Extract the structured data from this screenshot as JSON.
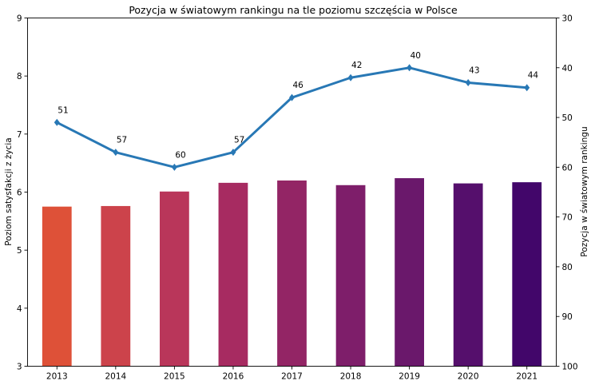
{
  "chart_data": {
    "type": "bar",
    "title": "Pozycja w światowym rankingu na tle poziomu szczęścia w Polsce",
    "categories": [
      "2013",
      "2014",
      "2015",
      "2016",
      "2017",
      "2018",
      "2019",
      "2020",
      "2021"
    ],
    "bars": {
      "ylabel": "Poziom satysfakcji z życia",
      "ylim": [
        3,
        9
      ],
      "yticks": [
        "3",
        "4",
        "5",
        "6",
        "7",
        "8",
        "9"
      ],
      "values": [
        5.75,
        5.76,
        6.01,
        6.16,
        6.2,
        6.12,
        6.24,
        6.15,
        6.17
      ],
      "colors": [
        "#de5138",
        "#cc434b",
        "#b9365a",
        "#a72b61",
        "#932565",
        "#7e1e6a",
        "#6a186b",
        "#550f6c",
        "#42066a"
      ]
    },
    "line": {
      "ylabel": "Pozycja w światowym rankingu",
      "ylim_inverted": [
        30,
        100
      ],
      "yticks": [
        "30",
        "40",
        "50",
        "60",
        "70",
        "80",
        "90",
        "100"
      ],
      "values": [
        51,
        57,
        60,
        57,
        46,
        42,
        40,
        43,
        44
      ],
      "labels": [
        "51",
        "57",
        "60",
        "57",
        "46",
        "42",
        "40",
        "43",
        "44"
      ],
      "color": "#2878b5",
      "marker": "diamond"
    },
    "grid": false
  }
}
